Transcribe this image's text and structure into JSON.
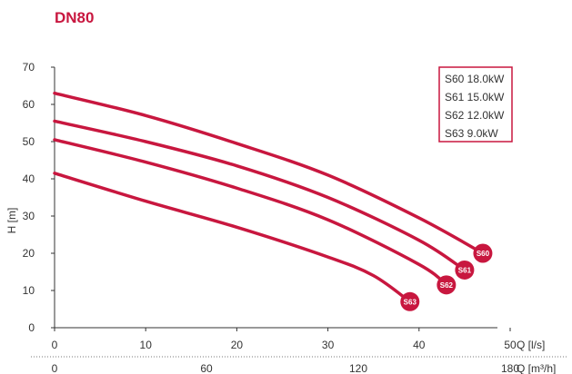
{
  "title": "DN80",
  "colors": {
    "accent": "#c8173f",
    "axis": "#333333",
    "text": "#333333"
  },
  "chart_data": {
    "type": "line",
    "title": "DN80",
    "xlabel": "Q [l/s]",
    "ylabel": "H [m]",
    "secondary_xlabel": "Q [m³/h]",
    "xlim": [
      0,
      50
    ],
    "ylim": [
      0,
      70
    ],
    "x_ticks": [
      "0",
      "10",
      "20",
      "30",
      "40",
      "50"
    ],
    "y_ticks": [
      "0",
      "10",
      "20",
      "30",
      "40",
      "50",
      "60",
      "70"
    ],
    "secondary_x_ticks": [
      "0",
      "60",
      "120",
      "180"
    ],
    "secondary_x_values": [
      0,
      60,
      120,
      180
    ],
    "grid": false,
    "legend_position": "top-right",
    "legend": [
      "S60 18.0kW",
      "S61 15.0kW",
      "S62 12.0kW",
      "S63 9.0kW"
    ],
    "series": [
      {
        "name": "S60",
        "label": "S60",
        "x": [
          0,
          10,
          20,
          30,
          40,
          47
        ],
        "y": [
          63,
          57,
          49.5,
          41,
          29.5,
          20
        ]
      },
      {
        "name": "S61",
        "label": "S61",
        "x": [
          0,
          10,
          20,
          30,
          40,
          45
        ],
        "y": [
          55.5,
          50,
          43.5,
          35,
          23.5,
          15.5
        ]
      },
      {
        "name": "S62",
        "label": "S62",
        "x": [
          0,
          10,
          20,
          30,
          40,
          43
        ],
        "y": [
          50.5,
          44.5,
          37.5,
          29,
          17,
          11.5
        ]
      },
      {
        "name": "S63",
        "label": "S63",
        "x": [
          0,
          10,
          20,
          30,
          35,
          39
        ],
        "y": [
          41.5,
          34,
          27,
          19,
          14,
          7
        ]
      }
    ]
  }
}
